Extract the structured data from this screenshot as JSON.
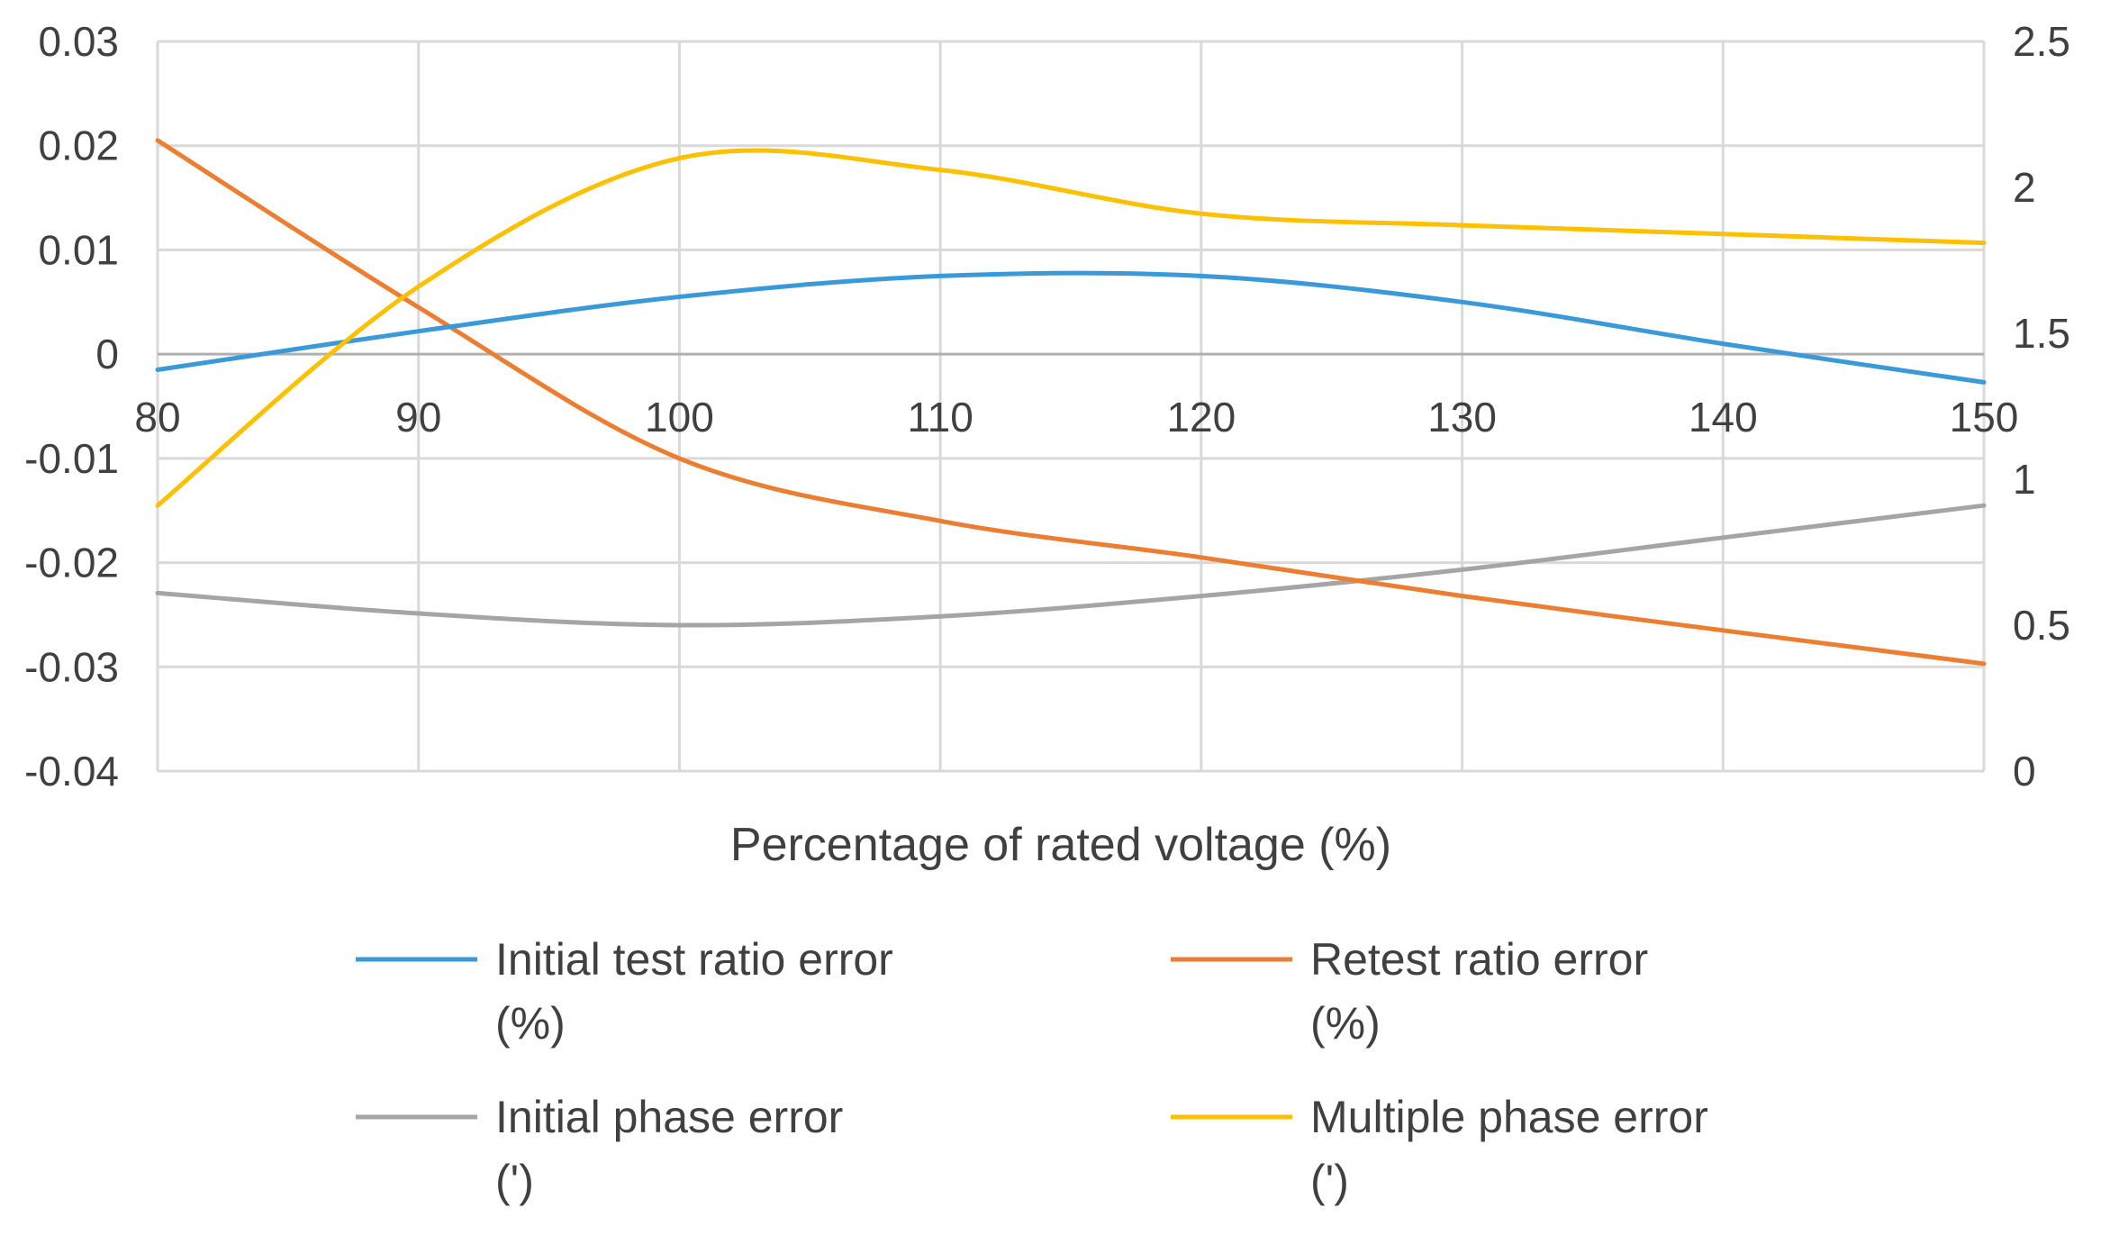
{
  "chart_data": {
    "type": "line",
    "xlabel": "Percentage of rated voltage (%)",
    "x": [
      80,
      90,
      100,
      110,
      120,
      130,
      140,
      150
    ],
    "x_ticks": [
      "80",
      "90",
      "100",
      "110",
      "120",
      "130",
      "140",
      "150"
    ],
    "xlim": [
      80,
      150
    ],
    "y_left": {
      "ylim": [
        -0.04,
        0.03
      ],
      "ticks": [
        "0.03",
        "0.02",
        "0.01",
        "0",
        "-0.01",
        "-0.02",
        "-0.03",
        "-0.04"
      ],
      "tick_values": [
        0.03,
        0.02,
        0.01,
        0,
        -0.01,
        -0.02,
        -0.03,
        -0.04
      ]
    },
    "y_right": {
      "ylim": [
        0,
        2.5
      ],
      "ticks": [
        "2.5",
        "2",
        "1.5",
        "1",
        "0.5",
        "0"
      ],
      "tick_values": [
        2.5,
        2,
        1.5,
        1,
        0.5,
        0
      ]
    },
    "grid": true,
    "legend_position": "bottom",
    "series": [
      {
        "name_line1": "Initial test ratio error",
        "name_line2": "(%)",
        "axis": "left",
        "color": "#3a9ad9",
        "values": [
          -0.0015,
          0.0022,
          0.0055,
          0.0075,
          0.0075,
          0.005,
          0.001,
          -0.0027
        ]
      },
      {
        "name_line1": "Retest ratio error",
        "name_line2": "(%)",
        "axis": "left",
        "color": "#ed7d31",
        "values": [
          0.0205,
          0.0045,
          -0.01,
          -0.016,
          -0.0195,
          -0.0232,
          -0.0265,
          -0.0297
        ]
      },
      {
        "name_line1": "Initial phase error",
        "name_line2": "(')",
        "axis": "right",
        "color": "#a5a5a5",
        "values": [
          0.61,
          0.54,
          0.5,
          0.53,
          0.6,
          0.69,
          0.8,
          0.91
        ]
      },
      {
        "name_line1": "Multiple phase error",
        "name_line2": "(')",
        "axis": "right",
        "color": "#ffc000",
        "values": [
          0.91,
          1.66,
          2.1,
          2.06,
          1.91,
          1.87,
          1.84,
          1.81
        ]
      }
    ]
  }
}
